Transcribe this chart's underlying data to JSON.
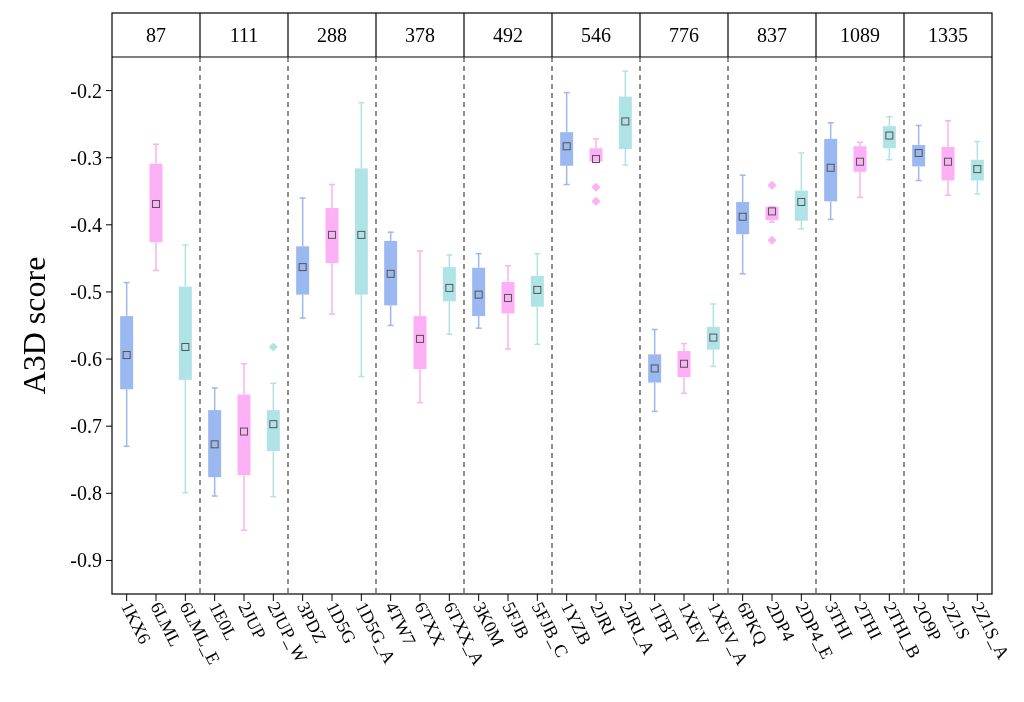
{
  "chart_data": [
    {
      "type": "box",
      "title": "87",
      "ylabel": "A3D score",
      "categories": [
        "1KX6",
        "6LML",
        "6LML_E"
      ],
      "colors": [
        "#9bb8f0",
        "#fdb0f5",
        "#b0e3e6"
      ],
      "ylim": [
        -0.95,
        -0.15
      ],
      "yticks": [
        -0.9,
        -0.8,
        -0.7,
        -0.6,
        -0.5,
        -0.4,
        -0.3,
        -0.2
      ],
      "boxes": [
        {
          "low": -0.73,
          "q1": -0.645,
          "median": -0.594,
          "q3": -0.536,
          "high": -0.486
        },
        {
          "low": -0.468,
          "q1": -0.426,
          "median": -0.369,
          "q3": -0.309,
          "high": -0.28
        },
        {
          "low": -0.799,
          "q1": -0.631,
          "median": -0.582,
          "q3": -0.492,
          "high": -0.43
        }
      ]
    },
    {
      "type": "box",
      "title": "111",
      "tick_labels": "x",
      "categories": [
        "1E0L",
        "2JUP",
        "2JUP_W"
      ],
      "colors": [
        "#9bb8f0",
        "#fdb0f5",
        "#b0e3e6"
      ],
      "ylim": [
        -0.95,
        -0.15
      ],
      "yticks": [
        -0.9,
        -0.8,
        -0.7,
        -0.6,
        -0.5,
        -0.4,
        -0.3,
        -0.2
      ],
      "boxes": [
        {
          "low": -0.804,
          "q1": -0.776,
          "median": -0.727,
          "q3": -0.676,
          "high": -0.643
        },
        {
          "low": -0.855,
          "q1": -0.773,
          "median": -0.708,
          "q3": -0.653,
          "high": -0.607
        },
        {
          "low": -0.805,
          "q1": -0.737,
          "median": -0.697,
          "q3": -0.676,
          "high": -0.636,
          "outliers": [
            -0.582
          ]
        }
      ]
    },
    {
      "type": "box",
      "title": "288",
      "tick_labels": "x",
      "categories": [
        "3PDZ",
        "1D5G",
        "1D5G_A"
      ],
      "colors": [
        "#9bb8f0",
        "#fdb0f5",
        "#b0e3e6"
      ],
      "ylim": [
        -0.95,
        -0.15
      ],
      "yticks": [
        -0.9,
        -0.8,
        -0.7,
        -0.6,
        -0.5,
        -0.4,
        -0.3,
        -0.2
      ],
      "boxes": [
        {
          "low": -0.539,
          "q1": -0.504,
          "median": -0.463,
          "q3": -0.432,
          "high": -0.36
        },
        {
          "low": -0.533,
          "q1": -0.457,
          "median": -0.415,
          "q3": -0.375,
          "high": -0.34
        },
        {
          "low": -0.626,
          "q1": -0.504,
          "median": -0.415,
          "q3": -0.316,
          "high": -0.218
        }
      ]
    },
    {
      "type": "box",
      "title": "378",
      "tick_labels": "x",
      "categories": [
        "4TW7",
        "6TXX",
        "6TXX_A"
      ],
      "colors": [
        "#9bb8f0",
        "#fdb0f5",
        "#b0e3e6"
      ],
      "ylim": [
        -0.95,
        -0.15
      ],
      "yticks": [
        -0.9,
        -0.8,
        -0.7,
        -0.6,
        -0.5,
        -0.4,
        -0.3,
        -0.2
      ],
      "boxes": [
        {
          "low": -0.55,
          "q1": -0.52,
          "median": -0.473,
          "q3": -0.424,
          "high": -0.411
        },
        {
          "low": -0.665,
          "q1": -0.615,
          "median": -0.57,
          "q3": -0.536,
          "high": -0.439
        },
        {
          "low": -0.563,
          "q1": -0.514,
          "median": -0.494,
          "q3": -0.463,
          "high": -0.445
        }
      ]
    },
    {
      "type": "box",
      "title": "492",
      "tick_labels": "x",
      "categories": [
        "3K0M",
        "5FJB",
        "5FJB_C"
      ],
      "colors": [
        "#9bb8f0",
        "#fdb0f5",
        "#b0e3e6"
      ],
      "ylim": [
        -0.95,
        -0.15
      ],
      "yticks": [
        -0.9,
        -0.8,
        -0.7,
        -0.6,
        -0.5,
        -0.4,
        -0.3,
        -0.2
      ],
      "boxes": [
        {
          "low": -0.554,
          "q1": -0.536,
          "median": -0.504,
          "q3": -0.464,
          "high": -0.443
        },
        {
          "low": -0.585,
          "q1": -0.532,
          "median": -0.509,
          "q3": -0.485,
          "high": -0.461
        },
        {
          "low": -0.578,
          "q1": -0.522,
          "median": -0.497,
          "q3": -0.476,
          "high": -0.443
        }
      ]
    },
    {
      "type": "box",
      "title": "546",
      "tick_labels": "x",
      "categories": [
        "1YZB",
        "2JRI",
        "2JRI_A"
      ],
      "colors": [
        "#9bb8f0",
        "#fdb0f5",
        "#b0e3e6"
      ],
      "ylim": [
        -0.95,
        -0.15
      ],
      "yticks": [
        -0.9,
        -0.8,
        -0.7,
        -0.6,
        -0.5,
        -0.4,
        -0.3,
        -0.2
      ],
      "boxes": [
        {
          "low": -0.34,
          "q1": -0.312,
          "median": -0.283,
          "q3": -0.262,
          "high": -0.203
        },
        {
          "low": -0.307,
          "q1": -0.306,
          "median": -0.302,
          "q3": -0.286,
          "high": -0.272,
          "outliers": [
            -0.344,
            -0.365
          ]
        },
        {
          "low": -0.311,
          "q1": -0.287,
          "median": -0.246,
          "q3": -0.209,
          "high": -0.171
        }
      ]
    },
    {
      "type": "box",
      "title": "776",
      "tick_labels": "x",
      "categories": [
        "1TBT",
        "1XEV",
        "1XEV_A"
      ],
      "colors": [
        "#9bb8f0",
        "#fdb0f5",
        "#b0e3e6"
      ],
      "ylim": [
        -0.95,
        -0.15
      ],
      "yticks": [
        -0.9,
        -0.8,
        -0.7,
        -0.6,
        -0.5,
        -0.4,
        -0.3,
        -0.2
      ],
      "boxes": [
        {
          "low": -0.678,
          "q1": -0.635,
          "median": -0.614,
          "q3": -0.593,
          "high": -0.556
        },
        {
          "low": -0.651,
          "q1": -0.627,
          "median": -0.607,
          "q3": -0.588,
          "high": -0.577
        },
        {
          "low": -0.611,
          "q1": -0.586,
          "median": -0.568,
          "q3": -0.552,
          "high": -0.518
        }
      ]
    },
    {
      "type": "box",
      "title": "837",
      "tick_labels": "x",
      "categories": [
        "6PKQ",
        "2DP4",
        "2DP4_E"
      ],
      "colors": [
        "#9bb8f0",
        "#fdb0f5",
        "#b0e3e6"
      ],
      "ylim": [
        -0.95,
        -0.15
      ],
      "yticks": [
        -0.9,
        -0.8,
        -0.7,
        -0.6,
        -0.5,
        -0.4,
        -0.3,
        -0.2
      ],
      "boxes": [
        {
          "low": -0.473,
          "q1": -0.414,
          "median": -0.388,
          "q3": -0.366,
          "high": -0.326
        },
        {
          "low": -0.396,
          "q1": -0.393,
          "median": -0.38,
          "q3": -0.373,
          "high": -0.373,
          "outliers": [
            -0.341,
            -0.423
          ]
        },
        {
          "low": -0.406,
          "q1": -0.394,
          "median": -0.366,
          "q3": -0.349,
          "high": -0.293
        }
      ]
    },
    {
      "type": "box",
      "title": "1089",
      "tick_labels": "x",
      "categories": [
        "3THI",
        "2THI",
        "2THI_B"
      ],
      "colors": [
        "#9bb8f0",
        "#fdb0f5",
        "#b0e3e6"
      ],
      "ylim": [
        -0.95,
        -0.15
      ],
      "yticks": [
        -0.9,
        -0.8,
        -0.7,
        -0.6,
        -0.5,
        -0.4,
        -0.3,
        -0.2
      ],
      "boxes": [
        {
          "low": -0.392,
          "q1": -0.365,
          "median": -0.315,
          "q3": -0.272,
          "high": -0.248
        },
        {
          "low": -0.359,
          "q1": -0.321,
          "median": -0.306,
          "q3": -0.283,
          "high": -0.277
        },
        {
          "low": -0.303,
          "q1": -0.286,
          "median": -0.267,
          "q3": -0.253,
          "high": -0.239
        }
      ]
    },
    {
      "type": "box",
      "title": "1335",
      "tick_labels": "x",
      "categories": [
        "2O9P",
        "2Z1S",
        "2Z1S_A"
      ],
      "colors": [
        "#9bb8f0",
        "#fdb0f5",
        "#b0e3e6"
      ],
      "ylim": [
        -0.95,
        -0.15
      ],
      "yticks": [
        -0.9,
        -0.8,
        -0.7,
        -0.6,
        -0.5,
        -0.4,
        -0.3,
        -0.2
      ],
      "boxes": [
        {
          "low": -0.334,
          "q1": -0.313,
          "median": -0.293,
          "q3": -0.281,
          "high": -0.252
        },
        {
          "low": -0.356,
          "q1": -0.334,
          "median": -0.306,
          "q3": -0.284,
          "high": -0.245
        },
        {
          "low": -0.354,
          "q1": -0.334,
          "median": -0.317,
          "q3": -0.303,
          "high": -0.276
        }
      ]
    }
  ]
}
